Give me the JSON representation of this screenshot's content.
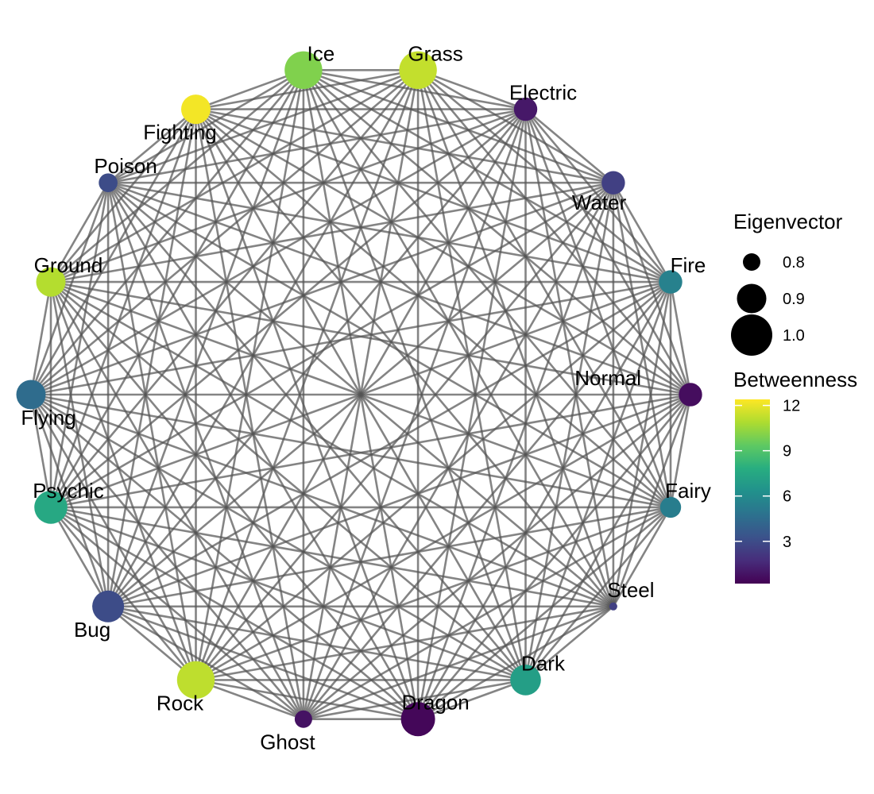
{
  "legend": {
    "size_title": "Eigenvector",
    "size_items": [
      {
        "label": "0.8",
        "value": 0.8
      },
      {
        "label": "0.9",
        "value": 0.9
      },
      {
        "label": "1.0",
        "value": 1.0
      }
    ],
    "color_title": "Betweenness",
    "color_ticks": [
      {
        "label": "12",
        "value": 12
      },
      {
        "label": "9",
        "value": 9
      },
      {
        "label": "6",
        "value": 6
      },
      {
        "label": "3",
        "value": 3
      }
    ],
    "color_range": [
      0.2,
      12.4
    ]
  },
  "nodes": [
    {
      "name": "Ice",
      "betweenness": 10.0,
      "eigenvector": 0.97
    },
    {
      "name": "Grass",
      "betweenness": 11.3,
      "eigenvector": 0.97
    },
    {
      "name": "Electric",
      "betweenness": 1.0,
      "eigenvector": 0.85
    },
    {
      "name": "Water",
      "betweenness": 2.5,
      "eigenvector": 0.85
    },
    {
      "name": "Fire",
      "betweenness": 5.5,
      "eigenvector": 0.85
    },
    {
      "name": "Normal",
      "betweenness": 0.6,
      "eigenvector": 0.85
    },
    {
      "name": "Fairy",
      "betweenness": 5.3,
      "eigenvector": 0.83
    },
    {
      "name": "Steel",
      "betweenness": 2.5,
      "eigenvector": 0.7
    },
    {
      "name": "Dark",
      "betweenness": 7.0,
      "eigenvector": 0.91
    },
    {
      "name": "Dragon",
      "betweenness": 0.4,
      "eigenvector": 0.94
    },
    {
      "name": "Ghost",
      "betweenness": 0.8,
      "eigenvector": 0.8
    },
    {
      "name": "Rock",
      "betweenness": 11.2,
      "eigenvector": 0.97
    },
    {
      "name": "Bug",
      "betweenness": 3.0,
      "eigenvector": 0.92
    },
    {
      "name": "Psychic",
      "betweenness": 7.5,
      "eigenvector": 0.93
    },
    {
      "name": "Flying",
      "betweenness": 4.5,
      "eigenvector": 0.9
    },
    {
      "name": "Ground",
      "betweenness": 11.0,
      "eigenvector": 0.9
    },
    {
      "name": "Poison",
      "betweenness": 3.0,
      "eigenvector": 0.81
    },
    {
      "name": "Fighting",
      "betweenness": 12.2,
      "eigenvector": 0.9
    }
  ],
  "edges": "complete"
}
